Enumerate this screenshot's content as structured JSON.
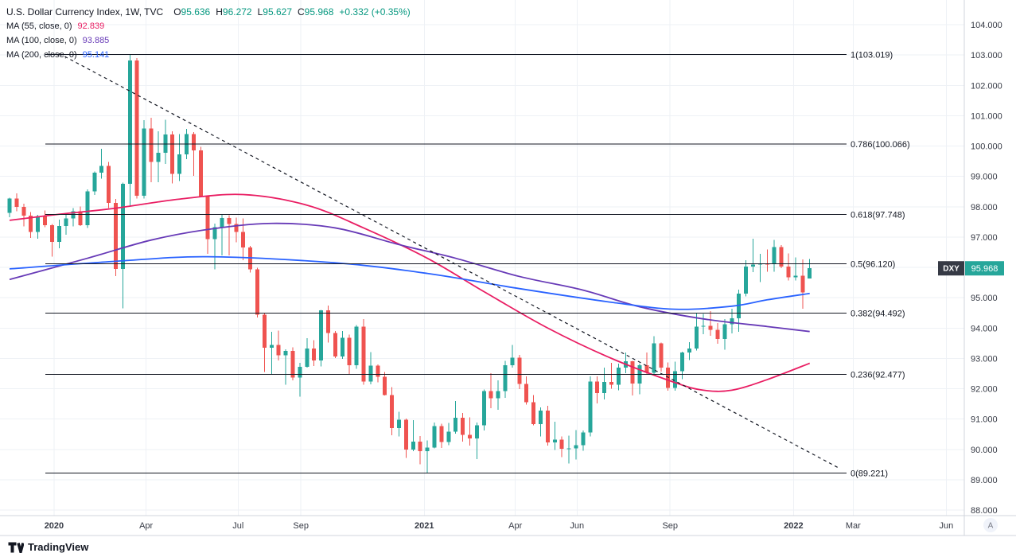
{
  "header": {
    "symbol": "U.S. Dollar Currency Index",
    "interval": "1W",
    "exchange": "TVC",
    "symbol_line": "U.S. Dollar Currency Index, 1W, TVC",
    "ohlc": [
      {
        "label": "O",
        "value": "95.636"
      },
      {
        "label": "H",
        "value": "96.272"
      },
      {
        "label": "L",
        "value": "95.627"
      },
      {
        "label": "C",
        "value": "95.968"
      }
    ],
    "change": "+0.332 (+0.35%)",
    "indicators": [
      {
        "label": "MA (55, close, 0)",
        "value": "92.839"
      },
      {
        "label": "MA (100, close, 0)",
        "value": "93.885"
      },
      {
        "label": "MA (200, close, 0)",
        "value": "95.141"
      }
    ]
  },
  "footer": {
    "logo_text": "TradingView"
  },
  "price_scale": {
    "ticker": "DXY",
    "last_price": "95.968",
    "auto_label": "A",
    "ticks": [
      {
        "text": "104.000",
        "value": 104
      },
      {
        "text": "103.000",
        "value": 103
      },
      {
        "text": "102.000",
        "value": 102
      },
      {
        "text": "101.000",
        "value": 101
      },
      {
        "text": "100.000",
        "value": 100
      },
      {
        "text": "99.000",
        "value": 99
      },
      {
        "text": "98.000",
        "value": 98
      },
      {
        "text": "97.000",
        "value": 97
      },
      {
        "text": "96.000",
        "value": 96
      },
      {
        "text": "95.000",
        "value": 95
      },
      {
        "text": "94.000",
        "value": 94
      },
      {
        "text": "93.000",
        "value": 93
      },
      {
        "text": "92.000",
        "value": 92
      },
      {
        "text": "91.000",
        "value": 91
      },
      {
        "text": "90.000",
        "value": 90
      },
      {
        "text": "89.000",
        "value": 89
      },
      {
        "text": "88.000",
        "value": 88
      }
    ]
  },
  "time_axis": [
    {
      "text": "2020",
      "date": "2020-01-01",
      "bold": true
    },
    {
      "text": "Apr",
      "date": "2020-04-01"
    },
    {
      "text": "Jul",
      "date": "2020-07-01"
    },
    {
      "text": "Sep",
      "date": "2020-09-01"
    },
    {
      "text": "2021",
      "date": "2021-01-01",
      "bold": true
    },
    {
      "text": "Apr",
      "date": "2021-04-01"
    },
    {
      "text": "Jun",
      "date": "2021-06-01"
    },
    {
      "text": "Sep",
      "date": "2021-09-01"
    },
    {
      "text": "2022",
      "date": "2022-01-01",
      "bold": true
    },
    {
      "text": "Mar",
      "date": "2022-03-01"
    },
    {
      "text": "Jun",
      "date": "2022-06-01"
    }
  ],
  "theme": {
    "background": "#ffffff",
    "grid": "#eef1f6",
    "axis_text": "#363a45",
    "axis_line": "#d1d4dc",
    "fib_line": "#131722",
    "trend_line": "#131722",
    "ohlc_value": "#089981",
    "badge_ticker_bg": "#363a45",
    "badge_price_bg": "#26a69a",
    "badge_text": "#ffffff",
    "button_bg": "#f0f3fa",
    "button_text": "#787b86"
  },
  "chart_data": {
    "type": "candlestick",
    "title": "U.S. Dollar Currency Index",
    "symbol": "DXY",
    "interval": "1W",
    "ylim": [
      88,
      104
    ],
    "grid": true,
    "start_date": "2019-11-18",
    "interval_days": 7,
    "colors": {
      "up": "#26a69a",
      "down": "#ef5350"
    },
    "candles": [
      [
        97.8,
        98.3,
        97.65,
        98.27
      ],
      [
        98.27,
        98.44,
        97.85,
        98.0
      ],
      [
        98.0,
        98.1,
        97.35,
        97.7
      ],
      [
        97.7,
        97.82,
        96.97,
        97.17
      ],
      [
        97.17,
        97.73,
        96.94,
        97.69
      ],
      [
        97.69,
        97.87,
        97.33,
        97.39
      ],
      [
        97.39,
        97.43,
        96.36,
        96.84
      ],
      [
        96.84,
        97.58,
        96.63,
        97.36
      ],
      [
        97.36,
        97.73,
        97.08,
        97.61
      ],
      [
        97.61,
        97.95,
        97.35,
        97.85
      ],
      [
        97.85,
        98.01,
        97.36,
        97.39
      ],
      [
        97.39,
        98.57,
        97.3,
        98.51
      ],
      [
        98.51,
        99.16,
        98.39,
        99.12
      ],
      [
        99.12,
        99.91,
        98.92,
        99.34
      ],
      [
        99.34,
        99.47,
        97.95,
        98.13
      ],
      [
        98.13,
        98.26,
        95.71,
        95.95
      ],
      [
        95.95,
        98.8,
        94.65,
        98.75
      ],
      [
        98.75,
        103.01,
        97.99,
        102.82
      ],
      [
        102.82,
        102.9,
        98.27,
        98.36
      ],
      [
        98.36,
        100.85,
        98.27,
        100.58
      ],
      [
        100.58,
        100.93,
        98.81,
        99.48
      ],
      [
        99.48,
        100.48,
        98.81,
        99.78
      ],
      [
        99.78,
        100.87,
        99.41,
        100.38
      ],
      [
        100.38,
        100.49,
        98.77,
        99.08
      ],
      [
        99.08,
        100.4,
        98.84,
        99.73
      ],
      [
        99.73,
        100.56,
        99.57,
        100.4
      ],
      [
        100.4,
        100.46,
        99.01,
        99.86
      ],
      [
        99.86,
        99.97,
        98.34,
        98.34
      ],
      [
        98.34,
        98.35,
        96.44,
        96.93
      ],
      [
        96.93,
        97.44,
        95.94,
        97.32
      ],
      [
        97.32,
        97.74,
        96.39,
        97.62
      ],
      [
        97.62,
        97.72,
        96.39,
        97.43
      ],
      [
        97.43,
        97.64,
        96.82,
        97.17
      ],
      [
        97.17,
        97.61,
        96.23,
        96.65
      ],
      [
        96.65,
        96.71,
        95.83,
        95.94
      ],
      [
        95.94,
        95.99,
        94.35,
        94.44
      ],
      [
        94.44,
        94.48,
        92.55,
        93.35
      ],
      [
        93.35,
        93.88,
        92.48,
        93.44
      ],
      [
        93.44,
        93.91,
        92.93,
        93.1
      ],
      [
        93.1,
        93.3,
        92.13,
        93.25
      ],
      [
        93.25,
        93.37,
        92.28,
        92.37
      ],
      [
        92.37,
        92.85,
        91.74,
        92.72
      ],
      [
        92.72,
        93.66,
        92.7,
        93.33
      ],
      [
        93.33,
        93.6,
        92.75,
        92.93
      ],
      [
        92.93,
        94.6,
        92.74,
        94.58
      ],
      [
        94.58,
        94.74,
        93.52,
        93.84
      ],
      [
        93.84,
        93.9,
        93.01,
        93.06
      ],
      [
        93.06,
        93.9,
        92.99,
        93.68
      ],
      [
        93.68,
        93.79,
        92.47,
        92.77
      ],
      [
        92.77,
        94.1,
        92.65,
        94.04
      ],
      [
        94.04,
        94.3,
        92.13,
        92.23
      ],
      [
        92.23,
        93.21,
        92.15,
        92.76
      ],
      [
        92.76,
        92.8,
        92.21,
        92.39
      ],
      [
        92.39,
        92.55,
        91.78,
        91.79
      ],
      [
        91.79,
        92.05,
        90.47,
        90.7
      ],
      [
        90.7,
        91.24,
        90.42,
        90.98
      ],
      [
        90.98,
        91.02,
        89.72,
        90.0
      ],
      [
        90.0,
        90.97,
        89.94,
        90.25
      ],
      [
        90.25,
        90.44,
        89.51,
        89.94
      ],
      [
        89.94,
        90.3,
        89.21,
        90.06
      ],
      [
        90.06,
        90.88,
        90.03,
        90.77
      ],
      [
        90.77,
        90.84,
        90.04,
        90.24
      ],
      [
        90.24,
        90.87,
        90.14,
        90.58
      ],
      [
        90.58,
        91.6,
        90.52,
        91.04
      ],
      [
        91.04,
        91.2,
        90.25,
        90.48
      ],
      [
        90.48,
        91.06,
        90.12,
        90.36
      ],
      [
        90.36,
        90.88,
        89.68,
        90.79
      ],
      [
        90.79,
        91.98,
        90.62,
        91.92
      ],
      [
        91.92,
        92.51,
        91.36,
        91.68
      ],
      [
        91.68,
        92.28,
        91.3,
        91.92
      ],
      [
        91.92,
        92.92,
        91.7,
        92.77
      ],
      [
        92.77,
        93.44,
        92.69,
        93.02
      ],
      [
        93.02,
        93.12,
        91.99,
        92.16
      ],
      [
        92.16,
        92.41,
        91.48,
        91.56
      ],
      [
        91.56,
        91.79,
        90.8,
        90.83
      ],
      [
        90.83,
        91.38,
        90.42,
        91.28
      ],
      [
        91.28,
        91.44,
        90.13,
        90.23
      ],
      [
        90.23,
        90.91,
        89.98,
        90.32
      ],
      [
        90.32,
        90.42,
        89.74,
        90.02
      ],
      [
        90.02,
        90.45,
        89.53,
        90.03
      ],
      [
        90.03,
        90.63,
        89.66,
        90.14
      ],
      [
        90.14,
        90.62,
        89.95,
        90.56
      ],
      [
        90.56,
        92.41,
        90.42,
        92.23
      ],
      [
        92.23,
        92.41,
        91.52,
        91.85
      ],
      [
        91.85,
        92.7,
        91.64,
        92.22
      ],
      [
        92.22,
        92.85,
        92.0,
        92.13
      ],
      [
        92.13,
        92.83,
        91.95,
        92.69
      ],
      [
        92.69,
        93.19,
        92.51,
        92.91
      ],
      [
        92.91,
        92.92,
        91.78,
        92.17
      ],
      [
        92.17,
        92.82,
        91.82,
        92.78
      ],
      [
        92.78,
        93.19,
        92.46,
        92.52
      ],
      [
        92.52,
        93.73,
        92.47,
        93.5
      ],
      [
        93.5,
        93.52,
        92.57,
        92.69
      ],
      [
        92.69,
        92.86,
        91.94,
        92.03
      ],
      [
        92.03,
        92.89,
        91.94,
        92.58
      ],
      [
        92.58,
        93.22,
        92.32,
        93.2
      ],
      [
        93.2,
        93.53,
        92.94,
        93.33
      ],
      [
        93.33,
        94.5,
        93.26,
        94.04
      ],
      [
        94.04,
        94.47,
        93.8,
        94.07
      ],
      [
        94.07,
        94.56,
        93.75,
        93.94
      ],
      [
        93.94,
        94.17,
        93.48,
        93.64
      ],
      [
        93.64,
        94.3,
        93.28,
        94.12
      ],
      [
        94.12,
        94.63,
        93.82,
        94.32
      ],
      [
        94.32,
        95.27,
        93.87,
        95.13
      ],
      [
        95.13,
        96.24,
        95.04,
        96.03
      ],
      [
        96.03,
        96.94,
        95.84,
        96.09
      ],
      [
        96.09,
        96.45,
        95.52,
        96.12
      ],
      [
        96.12,
        96.59,
        95.85,
        96.1
      ],
      [
        96.1,
        96.91,
        95.85,
        96.67
      ],
      [
        96.67,
        96.73,
        95.97,
        96.02
      ],
      [
        96.02,
        96.46,
        95.57,
        95.67
      ],
      [
        95.67,
        96.33,
        95.57,
        95.72
      ],
      [
        95.72,
        96.26,
        94.63,
        95.17
      ],
      [
        95.636,
        96.272,
        95.627,
        95.968
      ]
    ],
    "ma": [
      {
        "name": "MA 55",
        "color": "#e91e63",
        "last_value": 92.839,
        "points": [
          [
            "2019-11-18",
            97.55
          ],
          [
            "2020-01-06",
            97.75
          ],
          [
            "2020-03-02",
            97.95
          ],
          [
            "2020-05-04",
            98.25
          ],
          [
            "2020-07-06",
            98.4
          ],
          [
            "2020-09-07",
            98.05
          ],
          [
            "2020-11-02",
            97.3
          ],
          [
            "2021-01-04",
            96.3
          ],
          [
            "2021-03-01",
            95.2
          ],
          [
            "2021-05-03",
            94.0
          ],
          [
            "2021-07-05",
            93.0
          ],
          [
            "2021-09-06",
            92.2
          ],
          [
            "2021-10-04",
            91.95
          ],
          [
            "2021-11-01",
            91.95
          ],
          [
            "2021-12-06",
            92.3
          ],
          [
            "2022-01-17",
            92.839
          ]
        ]
      },
      {
        "name": "MA 100",
        "color": "#673ab7",
        "last_value": 93.885,
        "points": [
          [
            "2019-11-18",
            95.6
          ],
          [
            "2020-02-03",
            96.3
          ],
          [
            "2020-04-06",
            96.9
          ],
          [
            "2020-06-01",
            97.25
          ],
          [
            "2020-08-03",
            97.45
          ],
          [
            "2020-10-05",
            97.3
          ],
          [
            "2020-12-07",
            96.75
          ],
          [
            "2021-02-01",
            96.3
          ],
          [
            "2021-04-05",
            95.7
          ],
          [
            "2021-06-07",
            95.25
          ],
          [
            "2021-08-02",
            94.7
          ],
          [
            "2021-10-04",
            94.3
          ],
          [
            "2021-12-06",
            94.05
          ],
          [
            "2022-01-17",
            93.885
          ]
        ]
      },
      {
        "name": "MA 200",
        "color": "#2962ff",
        "last_value": 95.141,
        "points": [
          [
            "2019-11-18",
            95.95
          ],
          [
            "2020-03-02",
            96.2
          ],
          [
            "2020-06-01",
            96.35
          ],
          [
            "2020-10-05",
            96.15
          ],
          [
            "2021-01-04",
            95.8
          ],
          [
            "2021-04-05",
            95.3
          ],
          [
            "2021-07-05",
            94.85
          ],
          [
            "2021-09-06",
            94.62
          ],
          [
            "2021-11-01",
            94.72
          ],
          [
            "2021-12-06",
            94.93
          ],
          [
            "2022-01-17",
            95.141
          ]
        ]
      }
    ],
    "fib_levels": [
      {
        "label": "1(103.019)",
        "value": 103.019
      },
      {
        "label": "0.786(100.066)",
        "value": 100.066
      },
      {
        "label": "0.618(97.748)",
        "value": 97.748
      },
      {
        "label": "0.5(96.120)",
        "value": 96.12
      },
      {
        "label": "0.382(94.492)",
        "value": 94.492
      },
      {
        "label": "0.236(92.477)",
        "value": 92.477
      },
      {
        "label": "0(89.221)",
        "value": 89.221
      }
    ],
    "trendline": {
      "style": "dashed",
      "start": [
        "2020-01-06",
        103.05
      ],
      "end": [
        "2022-02-14",
        89.4
      ]
    }
  }
}
